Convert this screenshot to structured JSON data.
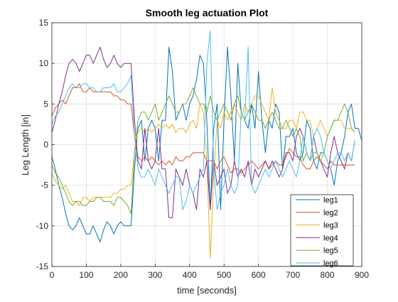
{
  "chart_data": {
    "type": "line",
    "title": "Smooth leg actuation Plot",
    "xlabel": "time [seconds]",
    "ylabel": "Leg Length [in]",
    "xlim": [
      0,
      900
    ],
    "ylim": [
      -15,
      15
    ],
    "xticks": [
      0,
      100,
      200,
      300,
      400,
      500,
      600,
      700,
      800,
      900
    ],
    "yticks": [
      -15,
      -10,
      -5,
      0,
      5,
      10,
      15
    ],
    "grid": true,
    "legend_position": "bottom-right",
    "x_step": 10,
    "series": [
      {
        "name": "leg1",
        "color": "#0072BD",
        "values": [
          -1.5,
          -3,
          -5,
          -6.5,
          -8.5,
          -10,
          -10.5,
          -10,
          -9,
          -10,
          -11,
          -11,
          -10,
          -11,
          -12,
          -10.5,
          -9.5,
          -10,
          -11,
          -10,
          -9.5,
          -10,
          -10,
          -10,
          -3,
          2,
          3,
          -2,
          2,
          3,
          2,
          -2,
          3,
          3,
          12,
          9,
          3,
          4,
          5,
          3,
          5,
          6,
          8,
          11,
          10,
          3,
          -8,
          2,
          5,
          -8,
          3,
          12,
          6,
          -2,
          10,
          4,
          3,
          2,
          5,
          2,
          9,
          3,
          -1,
          3,
          2,
          5,
          4,
          -3,
          1,
          1,
          2,
          -1,
          -2,
          -1,
          3,
          2,
          -2,
          -3,
          -1,
          -1,
          -2,
          -3,
          -5,
          -2,
          -1,
          1,
          4,
          5,
          2,
          2,
          0.5
        ]
      },
      {
        "name": "leg2",
        "color": "#D95319",
        "values": [
          3.5,
          4.5,
          5,
          5.5,
          5,
          6,
          7,
          7,
          7.5,
          6.5,
          6.5,
          7,
          6.5,
          6.5,
          6.5,
          6.5,
          6.5,
          6.5,
          6,
          6,
          5.5,
          5.5,
          5,
          5,
          1,
          -1.5,
          -2,
          -1.5,
          -2,
          -1.5,
          -2,
          -2.5,
          -2,
          -2.5,
          -2,
          -2.5,
          -1.5,
          -2,
          -2,
          -1.5,
          -1.5,
          -1,
          -1,
          -1,
          -1,
          -2,
          -2,
          -2,
          -3,
          -2,
          -1.5,
          -2.5,
          -3.5,
          -3,
          -3,
          -3.5,
          -3,
          -2.5,
          -2,
          -2.5,
          -3,
          -2.5,
          -2,
          -3,
          -2.5,
          -2,
          -2.5,
          -2.5,
          -1.5,
          -0.5,
          -1,
          -1.5,
          -1.5,
          -2.5,
          -3,
          -3,
          -2,
          -1.5,
          -2,
          -2.5,
          -3,
          -2,
          -2.5,
          -2.5,
          -2.5,
          -2.5,
          -2.5,
          -2.5,
          -2.5
        ]
      },
      {
        "name": "leg3",
        "color": "#EDB120",
        "values": [
          -3.5,
          -4.5,
          -5,
          -5.5,
          -5,
          -6,
          -7,
          -7,
          -7.5,
          -6.5,
          -6.5,
          -7,
          -6.5,
          -6.5,
          -6.5,
          -6.5,
          -6.5,
          -6.5,
          -6,
          -6,
          -5.5,
          -5.5,
          -5,
          -5,
          -1,
          1.5,
          2,
          1.5,
          2,
          1.5,
          2,
          2.5,
          2,
          2.5,
          2,
          2.5,
          1.5,
          2,
          2,
          1.5,
          2.5,
          3,
          2,
          5,
          4,
          -2,
          -14,
          -4,
          3,
          2,
          4,
          3,
          4,
          5,
          4,
          3,
          5,
          4,
          5,
          6,
          6,
          5,
          4,
          3,
          7,
          4,
          3,
          2,
          2,
          3,
          3,
          2,
          4,
          4,
          3,
          3,
          1,
          2,
          3,
          2,
          1,
          2,
          3,
          3,
          3,
          2,
          2,
          2,
          1.5
        ]
      },
      {
        "name": "leg4",
        "color": "#7E2F8E",
        "values": [
          1.5,
          3,
          5,
          6.5,
          8.5,
          10,
          10.5,
          10,
          9,
          10,
          11,
          11,
          10,
          11,
          12,
          10.5,
          9.5,
          10,
          11,
          10,
          9.5,
          10,
          10,
          10,
          3,
          -2,
          -3,
          2,
          -2,
          -3,
          -2,
          2,
          -3,
          -3,
          -9,
          -9,
          -3,
          -4,
          -5,
          -3,
          -5,
          -6,
          -8,
          -3,
          -4,
          -2,
          -8,
          -2,
          -5,
          -4,
          -3,
          -6,
          -5,
          -2,
          -4,
          -3,
          -4,
          -2,
          -5,
          -3,
          -4,
          -3,
          -2,
          -3,
          -2,
          -3,
          -4,
          -3,
          -1,
          -1,
          -2,
          1,
          2,
          1,
          -1,
          -2,
          1,
          -1,
          -2,
          -3,
          -4,
          -1,
          1,
          -1,
          -2,
          -3,
          -1,
          -2,
          0.5
        ]
      },
      {
        "name": "leg5",
        "color": "#77AC30",
        "values": [
          -2.5,
          -3.5,
          -4,
          -5,
          -6,
          -7,
          -7.5,
          -7,
          -7,
          -7.5,
          -7.5,
          -7,
          -7,
          -6.5,
          -6.5,
          -7,
          -7,
          -7,
          -7.5,
          -6.5,
          -6.5,
          -7,
          -7.5,
          -8.5,
          -1,
          3,
          4,
          4,
          3,
          4,
          5,
          3,
          4,
          5,
          6,
          5,
          4,
          4,
          5,
          5,
          6,
          7,
          6,
          5,
          5,
          4,
          6,
          4,
          3,
          4,
          5,
          4,
          3,
          5,
          6,
          4,
          3,
          4,
          5,
          4,
          3,
          3,
          2,
          3,
          4,
          3,
          2,
          2,
          3,
          2,
          1,
          2,
          1,
          -2,
          -1,
          -2,
          -1,
          -1,
          -2,
          -1,
          1,
          2,
          3,
          3,
          4,
          5,
          4,
          2,
          1.5
        ]
      },
      {
        "name": "leg6",
        "color": "#4DBEEE",
        "values": [
          2.5,
          3.5,
          4,
          5,
          6,
          7,
          7.5,
          7,
          7,
          7.5,
          7.5,
          7,
          7,
          6.5,
          6.5,
          7,
          7,
          7,
          7.5,
          6.5,
          6.5,
          7,
          7.5,
          8.5,
          1,
          -3,
          -4,
          -4,
          -3,
          -4,
          -5,
          -3,
          -4,
          -5,
          -6,
          -5,
          -4,
          -4,
          -8,
          -7,
          -5,
          -6,
          -5,
          -4,
          -3,
          10,
          14,
          -3,
          -8,
          -6,
          -5,
          -3,
          -5,
          -6,
          -5,
          4,
          3,
          12,
          -5,
          -6,
          -5,
          -4,
          -3,
          -4,
          -3,
          -2,
          -3,
          -4,
          -3,
          -2,
          -3,
          -4,
          -2,
          1,
          -1,
          -2,
          1,
          2,
          1,
          -1,
          -2,
          -3,
          -2,
          -1,
          -1,
          -2,
          -1,
          -2,
          0.5
        ]
      }
    ]
  }
}
